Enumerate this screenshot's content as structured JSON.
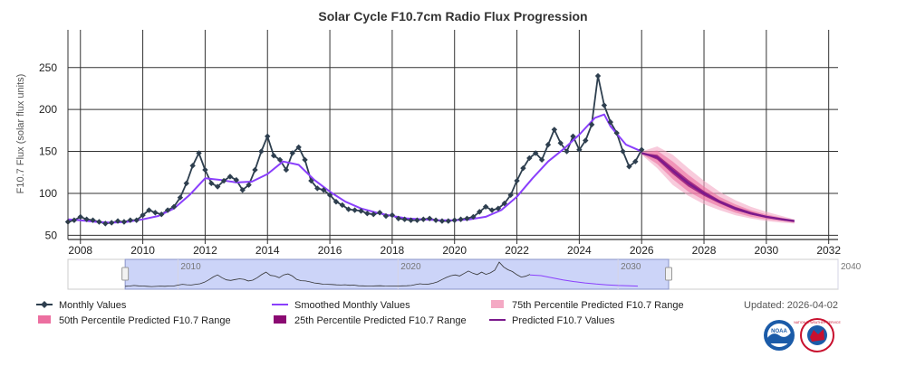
{
  "chart_data": {
    "type": "line",
    "title": "Solar Cycle F10.7cm Radio Flux Progression",
    "ylabel": "F10.7 Flux (solar flux units)",
    "xlabel": "",
    "xlim": [
      2007.6,
      2032.3
    ],
    "ylim": [
      45,
      295
    ],
    "x_ticks": [
      2008,
      2010,
      2012,
      2014,
      2016,
      2018,
      2020,
      2022,
      2024,
      2026,
      2028,
      2030,
      2032
    ],
    "y_ticks": [
      50,
      100,
      150,
      200,
      250
    ],
    "grid": true,
    "series": [
      {
        "name": "Monthly Values",
        "color": "#2e3f4f",
        "x": [
          2007.6,
          2007.8,
          2008.0,
          2008.2,
          2008.4,
          2008.6,
          2008.8,
          2009.0,
          2009.2,
          2009.4,
          2009.6,
          2009.8,
          2010.0,
          2010.2,
          2010.4,
          2010.6,
          2010.8,
          2011.0,
          2011.2,
          2011.4,
          2011.6,
          2011.8,
          2012.0,
          2012.2,
          2012.4,
          2012.6,
          2012.8,
          2013.0,
          2013.2,
          2013.4,
          2013.6,
          2013.8,
          2014.0,
          2014.2,
          2014.4,
          2014.6,
          2014.8,
          2015.0,
          2015.2,
          2015.4,
          2015.6,
          2015.8,
          2016.0,
          2016.2,
          2016.4,
          2016.6,
          2016.8,
          2017.0,
          2017.2,
          2017.4,
          2017.6,
          2017.8,
          2018.0,
          2018.2,
          2018.4,
          2018.6,
          2018.8,
          2019.0,
          2019.2,
          2019.4,
          2019.6,
          2019.8,
          2020.0,
          2020.2,
          2020.4,
          2020.6,
          2020.8,
          2021.0,
          2021.2,
          2021.4,
          2021.6,
          2021.8,
          2022.0,
          2022.2,
          2022.4,
          2022.6,
          2022.8,
          2023.0,
          2023.2,
          2023.4,
          2023.6,
          2023.8,
          2024.0,
          2024.2,
          2024.4,
          2024.6,
          2024.8,
          2025.0,
          2025.2,
          2025.4,
          2025.6,
          2025.8,
          2026.0
        ],
        "values": [
          66,
          68,
          72,
          69,
          68,
          66,
          64,
          65,
          67,
          66,
          68,
          68,
          74,
          80,
          77,
          75,
          80,
          84,
          95,
          112,
          133,
          148,
          128,
          112,
          108,
          115,
          120,
          116,
          104,
          110,
          128,
          150,
          168,
          145,
          140,
          128,
          148,
          155,
          140,
          115,
          106,
          104,
          98,
          90,
          86,
          81,
          80,
          79,
          76,
          75,
          77,
          73,
          74,
          70,
          69,
          68,
          68,
          69,
          70,
          68,
          67,
          67,
          68,
          69,
          70,
          72,
          78,
          84,
          80,
          82,
          88,
          98,
          115,
          130,
          142,
          148,
          140,
          158,
          176,
          160,
          150,
          168,
          152,
          163,
          182,
          240,
          205,
          185,
          172,
          150,
          132,
          138,
          152
        ]
      },
      {
        "name": "Smoothed Monthly Values",
        "color": "#8a3ffc",
        "x": [
          2007.6,
          2008.0,
          2008.5,
          2009.0,
          2009.5,
          2010.0,
          2010.5,
          2011.0,
          2011.5,
          2012.0,
          2012.5,
          2013.0,
          2013.5,
          2014.0,
          2014.5,
          2015.0,
          2015.5,
          2016.0,
          2016.5,
          2017.0,
          2017.5,
          2018.0,
          2018.5,
          2019.0,
          2019.5,
          2020.0,
          2020.5,
          2021.0,
          2021.5,
          2022.0,
          2022.5,
          2023.0,
          2023.5,
          2024.0,
          2024.5,
          2024.8,
          2025.0,
          2025.5,
          2026.0
        ],
        "values": [
          69,
          68,
          66,
          65,
          66,
          69,
          73,
          82,
          98,
          118,
          116,
          113,
          114,
          123,
          138,
          134,
          116,
          102,
          90,
          82,
          77,
          73,
          70,
          69,
          68,
          68,
          69,
          72,
          80,
          96,
          118,
          138,
          153,
          170,
          190,
          194,
          180,
          158,
          150
        ]
      },
      {
        "name": "Predicted F10.7 Values",
        "color": "#7b1a8c",
        "x": [
          2026.0,
          2026.5,
          2027.0,
          2027.5,
          2028.0,
          2028.5,
          2029.0,
          2029.5,
          2030.0,
          2030.5,
          2030.9
        ],
        "values": [
          148,
          143,
          127,
          112,
          100,
          90,
          82,
          76,
          72,
          69,
          67
        ]
      }
    ],
    "ranges": [
      {
        "name": "75th Percentile Predicted F10.7 Range",
        "color": "#f4a9c4",
        "x": [
          2026.0,
          2026.5,
          2027.0,
          2027.5,
          2028.0,
          2028.5,
          2029.0,
          2029.5,
          2030.0,
          2030.5,
          2030.9
        ],
        "upper": [
          150,
          156,
          146,
          130,
          115,
          102,
          92,
          84,
          78,
          73,
          69
        ],
        "lower": [
          146,
          130,
          110,
          97,
          87,
          80,
          74,
          70,
          67,
          65,
          64
        ]
      },
      {
        "name": "50th Percentile Predicted F10.7 Range",
        "color": "#ec6fa0",
        "x": [
          2026.0,
          2026.5,
          2027.0,
          2027.5,
          2028.0,
          2028.5,
          2029.0,
          2029.5,
          2030.0,
          2030.5,
          2030.9
        ],
        "upper": [
          149,
          151,
          138,
          122,
          108,
          96,
          87,
          80,
          75,
          71,
          68
        ],
        "lower": [
          147,
          135,
          117,
          102,
          92,
          84,
          77,
          72,
          69,
          67,
          65
        ]
      },
      {
        "name": "25th Percentile Predicted F10.7 Range",
        "color": "#8b0a72",
        "x": [
          2026.0,
          2026.5,
          2027.0,
          2027.5,
          2028.0,
          2028.5,
          2029.0,
          2029.5,
          2030.0,
          2030.5,
          2030.9
        ],
        "upper": [
          148,
          146,
          131,
          116,
          103,
          92,
          84,
          78,
          73,
          70,
          67
        ],
        "lower": [
          148,
          140,
          123,
          108,
          97,
          88,
          80,
          75,
          71,
          68,
          66
        ]
      }
    ],
    "legend": [
      {
        "label": "Monthly Values",
        "kind": "marker-line",
        "color": "#2e3f4f"
      },
      {
        "label": "Smoothed Monthly Values",
        "kind": "line",
        "color": "#8a3ffc"
      },
      {
        "label": "75th Percentile Predicted F10.7 Range",
        "kind": "box",
        "color": "#f4a9c4"
      },
      {
        "label": "50th Percentile Predicted F10.7 Range",
        "kind": "box",
        "color": "#ec6fa0"
      },
      {
        "label": "25th Percentile Predicted F10.7 Range",
        "kind": "box",
        "color": "#8b0a72"
      },
      {
        "label": "Predicted F10.7 Values",
        "kind": "line",
        "color": "#7b1a8c"
      }
    ],
    "navigator": {
      "xlim": [
        2005.0,
        2040.0
      ],
      "labels": [
        "2010",
        "2020",
        "2030",
        "2040"
      ],
      "label_values": [
        2010,
        2020,
        2030,
        2040
      ],
      "selected_range": [
        2007.6,
        2032.3
      ]
    }
  },
  "updated": "Updated: 2026-04-02",
  "logos": [
    {
      "name": "noaa-logo",
      "text": "NOAA"
    },
    {
      "name": "nws-logo",
      "text": "NATIONAL WEATHER SERVICE"
    }
  ]
}
